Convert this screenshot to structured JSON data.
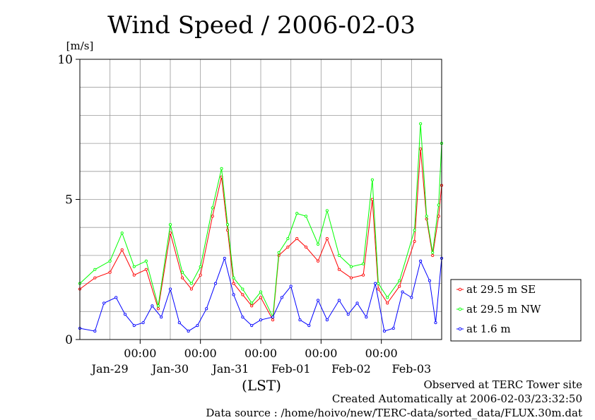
{
  "chart_data": {
    "type": "line",
    "title": "Wind Speed / 2006-02-03",
    "ylabel": "[m/s]",
    "xlabel": "(LST)",
    "ylim": [
      0,
      10
    ],
    "xlim_days": [
      -1.0,
      5.0
    ],
    "y_ticks": [
      0,
      5,
      10
    ],
    "x_time_ticks": [
      {
        "day": 0,
        "label": "00:00"
      },
      {
        "day": 1,
        "label": "00:00"
      },
      {
        "day": 2,
        "label": "00:00"
      },
      {
        "day": 3,
        "label": "00:00"
      },
      {
        "day": 4,
        "label": "00:00"
      }
    ],
    "x_date_ticks": [
      {
        "day": -0.5,
        "label": "Jan-29"
      },
      {
        "day": 0.5,
        "label": "Jan-30"
      },
      {
        "day": 1.5,
        "label": "Jan-31"
      },
      {
        "day": 2.5,
        "label": "Feb-01"
      },
      {
        "day": 3.5,
        "label": "Feb-02"
      },
      {
        "day": 4.5,
        "label": "Feb-03"
      }
    ],
    "grid": true,
    "legend_position": "right",
    "series": [
      {
        "name": "at 29.5 m SE",
        "color": "#ff0000",
        "x": [
          -1.0,
          -0.75,
          -0.5,
          -0.3,
          -0.1,
          0.1,
          0.3,
          0.5,
          0.7,
          0.85,
          1.0,
          1.2,
          1.35,
          1.45,
          1.55,
          1.7,
          1.85,
          2.0,
          2.2,
          2.3,
          2.45,
          2.6,
          2.75,
          2.95,
          3.1,
          3.3,
          3.5,
          3.7,
          3.85,
          3.95,
          4.1,
          4.3,
          4.55,
          4.65,
          4.75,
          4.85,
          4.95,
          5.0
        ],
        "values": [
          1.8,
          2.2,
          2.4,
          3.2,
          2.3,
          2.5,
          1.1,
          3.8,
          2.2,
          1.8,
          2.3,
          4.4,
          5.8,
          3.9,
          2.0,
          1.6,
          1.2,
          1.5,
          0.7,
          3.0,
          3.3,
          3.6,
          3.3,
          2.8,
          3.6,
          2.5,
          2.2,
          2.3,
          5.0,
          1.8,
          1.3,
          1.9,
          3.5,
          6.8,
          4.3,
          3.0,
          4.4,
          5.5
        ]
      },
      {
        "name": "at 29.5 m NW",
        "color": "#00ff00",
        "x": [
          -1.0,
          -0.75,
          -0.5,
          -0.3,
          -0.1,
          0.1,
          0.3,
          0.5,
          0.7,
          0.85,
          1.0,
          1.2,
          1.35,
          1.45,
          1.55,
          1.7,
          1.85,
          2.0,
          2.2,
          2.3,
          2.45,
          2.6,
          2.75,
          2.95,
          3.1,
          3.3,
          3.5,
          3.7,
          3.85,
          3.95,
          4.1,
          4.3,
          4.55,
          4.65,
          4.75,
          4.85,
          4.95,
          5.0
        ],
        "values": [
          2.0,
          2.5,
          2.8,
          3.8,
          2.6,
          2.8,
          1.2,
          4.1,
          2.4,
          2.0,
          2.6,
          4.7,
          6.1,
          4.1,
          2.2,
          1.8,
          1.3,
          1.7,
          0.8,
          3.1,
          3.6,
          4.5,
          4.4,
          3.4,
          4.6,
          3.0,
          2.6,
          2.7,
          5.7,
          2.0,
          1.5,
          2.1,
          3.9,
          7.7,
          4.4,
          3.1,
          4.8,
          7.0
        ]
      },
      {
        "name": "at 1.6 m",
        "color": "#0000ff",
        "x": [
          -1.0,
          -0.75,
          -0.6,
          -0.4,
          -0.25,
          -0.1,
          0.05,
          0.2,
          0.35,
          0.5,
          0.65,
          0.8,
          0.95,
          1.1,
          1.25,
          1.4,
          1.55,
          1.7,
          1.85,
          2.0,
          2.2,
          2.35,
          2.5,
          2.65,
          2.8,
          2.95,
          3.1,
          3.3,
          3.45,
          3.6,
          3.75,
          3.9,
          4.05,
          4.2,
          4.35,
          4.5,
          4.65,
          4.8,
          4.9,
          5.0
        ],
        "values": [
          0.4,
          0.3,
          1.3,
          1.5,
          0.9,
          0.5,
          0.6,
          1.2,
          0.8,
          1.8,
          0.6,
          0.3,
          0.5,
          1.1,
          2.0,
          2.9,
          1.6,
          0.8,
          0.5,
          0.7,
          0.8,
          1.5,
          1.9,
          0.7,
          0.5,
          1.4,
          0.7,
          1.4,
          0.9,
          1.3,
          0.8,
          2.0,
          0.3,
          0.4,
          1.7,
          1.5,
          2.8,
          2.1,
          0.6,
          2.9
        ]
      }
    ]
  },
  "footer": {
    "line1": "Observed at TERC Tower site",
    "line2": "Created Automatically at 2006-02-03/23:32:50",
    "line3": "Data source : /home/hoivo/new/TERC-data/sorted_data/FLUX.30m.dat"
  }
}
